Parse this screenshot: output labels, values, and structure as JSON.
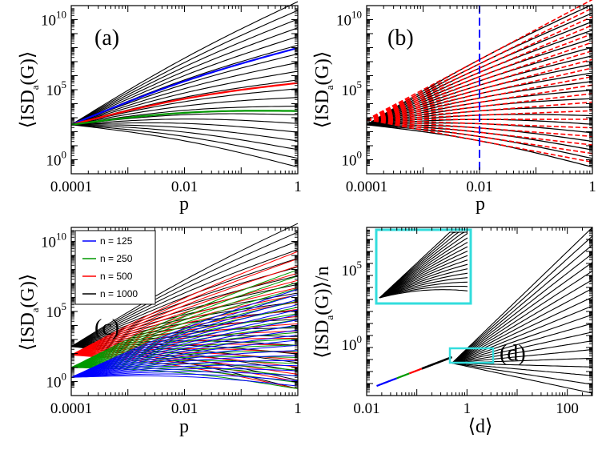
{
  "colors": {
    "black": "#000000",
    "blue": "#0000ff",
    "green": "#009900",
    "red": "#ff0000",
    "cyan": "#33dddd"
  },
  "chart_data": [
    {
      "id": "a",
      "type": "line",
      "panel_label": "(a)",
      "xlabel": "p",
      "ylabel": "⟨ISD_a(G)⟩",
      "xscale": "log",
      "yscale": "log",
      "xlim": [
        0.0001,
        1
      ],
      "ylim_exponent": [
        -1,
        11
      ],
      "x_ticks": [
        "0.0001",
        "0.01",
        "1"
      ],
      "y_tick_exponents": [
        0,
        5,
        10
      ],
      "convergence_point": {
        "x": 0.0001,
        "log10_y": 2.5
      },
      "series": [
        {
          "color": "black",
          "count": 20,
          "log10_y_at_p1_range": [
            -0.5,
            11.3
          ]
        },
        {
          "color": "blue",
          "log10_y_at_p1": 8.0
        },
        {
          "color": "red",
          "log10_y_at_p1": 5.5
        },
        {
          "color": "green",
          "log10_y_at_p1": 3.5
        }
      ]
    },
    {
      "id": "b",
      "type": "line",
      "panel_label": "(b)",
      "xlabel": "p",
      "ylabel": "⟨ISD_a(G)⟩",
      "xscale": "log",
      "yscale": "log",
      "xlim": [
        0.0001,
        1
      ],
      "ylim_exponent": [
        -1,
        11
      ],
      "x_ticks": [
        "0.0001",
        "0.01",
        "1"
      ],
      "y_tick_exponents": [
        0,
        5,
        10
      ],
      "vertical_reference_line": {
        "x": 0.01,
        "color": "blue",
        "style": "dashed"
      },
      "series": [
        {
          "color": "black",
          "style": "solid",
          "count": 20
        },
        {
          "color": "red",
          "style": "dashed",
          "count": 20
        }
      ]
    },
    {
      "id": "c",
      "type": "line",
      "panel_label": "(c)",
      "xlabel": "p",
      "ylabel": "⟨ISD_a(G)⟩",
      "xscale": "log",
      "yscale": "log",
      "xlim": [
        0.0001,
        1
      ],
      "ylim_exponent": [
        -1,
        11
      ],
      "x_ticks": [
        "0.0001",
        "0.01",
        "1"
      ],
      "y_tick_exponents": [
        0,
        5,
        10
      ],
      "legend_position": "top-left",
      "legend": [
        {
          "label": "n = 125",
          "color": "blue"
        },
        {
          "label": "n = 250",
          "color": "green"
        },
        {
          "label": "n = 500",
          "color": "red"
        },
        {
          "label": "n = 1000",
          "color": "black"
        }
      ]
    },
    {
      "id": "d",
      "type": "line",
      "panel_label": "(d)",
      "xlabel": "⟨d⟩",
      "ylabel": "⟨ISD_a(G)⟩/n",
      "xscale": "log",
      "yscale": "log",
      "xlim": [
        0.01,
        1000
      ],
      "ylim_exponent": [
        -4,
        10
      ],
      "x_ticks": [
        "0.01",
        "1",
        "100"
      ],
      "y_tick_exponents": [
        0,
        5
      ],
      "inset": {
        "border_color": "cyan",
        "zoom_region": "around ⟨d⟩ = 1"
      }
    }
  ]
}
